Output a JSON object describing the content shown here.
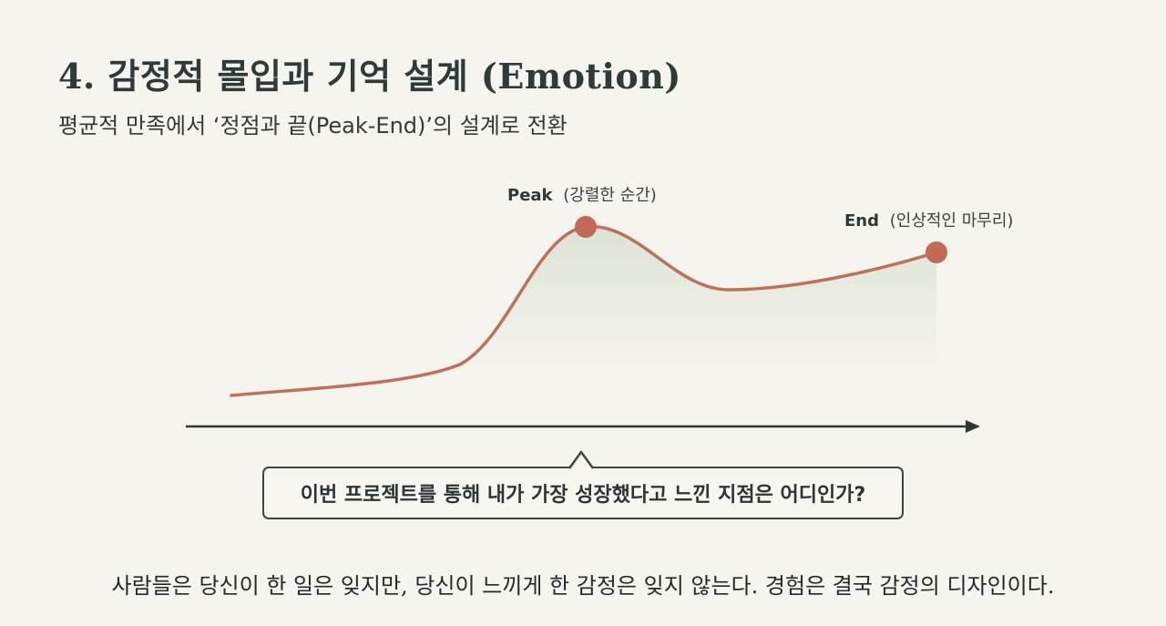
{
  "slide": {
    "title": "4. 감정적 몰입과 기억 설계 (Emotion)",
    "subtitle": "평균적 만족에서 ‘정점과 끝(Peak-End)’의 설계로 전환"
  },
  "diagram": {
    "peak": {
      "label": "Peak",
      "description": "(강렬한 순간)"
    },
    "end": {
      "label": "End",
      "description": "(인상적인 마무리)"
    },
    "question": "이번 프로젝트를 통해 내가 가장 성장했다고 느낀 지점은 어디인가?"
  },
  "quote": "사람들은 당신이 한 일은 잊지만, 당신이 느끼게 한 감정은 잊지 않는다. 경험은 결국 감정의 디자인이다.",
  "colors": {
    "background": "#f6f4ee",
    "curve": "#c0705a",
    "marker": "#c26a55",
    "fill": "#dfe6d8",
    "axis": "#2f3638",
    "text": "#2c3436"
  }
}
